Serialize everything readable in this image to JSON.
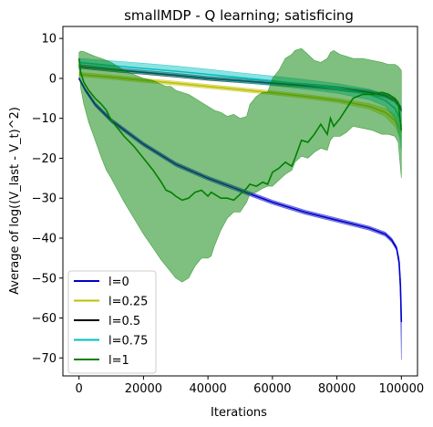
{
  "chart_data": {
    "type": "line",
    "title": "smallMDP - Q learning; satisficing",
    "xlabel": "Iterations",
    "ylabel": "Average of log((V_last - V_t)^2)",
    "xlim": [
      -5000,
      105000
    ],
    "ylim": [
      -74.5,
      13
    ],
    "xticks": [
      0,
      20000,
      40000,
      60000,
      80000,
      100000
    ],
    "xtick_labels": [
      "0",
      "20000",
      "40000",
      "60000",
      "80000",
      "100000"
    ],
    "yticks": [
      10,
      0,
      -10,
      -20,
      -30,
      -40,
      -50,
      -60,
      -70
    ],
    "ytick_labels": [
      "10",
      "0",
      "−10",
      "−20",
      "−30",
      "−40",
      "−50",
      "−60",
      "−70"
    ],
    "legend_position": "lower left",
    "grid": false,
    "series": [
      {
        "name": "l=0",
        "color": "#0000cc",
        "band_opacity": 0.45,
        "x": [
          0,
          2000,
          5000,
          10000,
          20000,
          30000,
          40000,
          50000,
          60000,
          70000,
          80000,
          90000,
          95000,
          97000,
          98500,
          99300,
          99700,
          100000
        ],
        "y": [
          0,
          -3,
          -6.5,
          -10.5,
          -16.5,
          -21.5,
          -25,
          -28,
          -31,
          -33.5,
          -35.5,
          -37.5,
          -39,
          -40.5,
          -42.5,
          -46,
          -52,
          -61
        ],
        "lower": [
          -0.3,
          -3.4,
          -7,
          -11,
          -17,
          -22,
          -25.5,
          -28.5,
          -31.5,
          -34,
          -36,
          -38,
          -39.5,
          -41,
          -43,
          -47,
          -55,
          -70.5
        ],
        "upper": [
          0.3,
          -2.6,
          -6,
          -10,
          -16,
          -21,
          -24.5,
          -27.5,
          -30.5,
          -33,
          -35,
          -37,
          -38.5,
          -40,
          -42,
          -45,
          -50,
          -58
        ]
      },
      {
        "name": "l=0.25",
        "color": "#bfbf00",
        "band_opacity": 0.45,
        "x": [
          0,
          10000,
          20000,
          30000,
          40000,
          50000,
          60000,
          70000,
          80000,
          90000,
          95000,
          98000,
          99500,
          100000
        ],
        "y": [
          1,
          0.3,
          -0.5,
          -1.2,
          -2,
          -2.8,
          -3.6,
          -4.5,
          -5.5,
          -7,
          -8.5,
          -10.5,
          -12.5,
          -13.5
        ],
        "lower": [
          0.5,
          -0.2,
          -1,
          -1.7,
          -2.5,
          -3.3,
          -4.1,
          -5,
          -6,
          -7.7,
          -9.5,
          -12,
          -14.5,
          -15.5
        ],
        "upper": [
          1.5,
          0.8,
          0,
          -0.7,
          -1.5,
          -2.3,
          -3.1,
          -4,
          -5,
          -6.3,
          -7.5,
          -9,
          -10.5,
          -11.5
        ]
      },
      {
        "name": "l=0.5",
        "color": "#000000",
        "band_opacity": 0.45,
        "x": [
          0,
          10000,
          20000,
          30000,
          40000,
          50000,
          60000,
          70000,
          80000,
          90000,
          95000,
          98000,
          99500,
          100000
        ],
        "y": [
          3,
          2.2,
          1.5,
          0.8,
          0,
          -0.6,
          -1.2,
          -1.8,
          -2.5,
          -3.5,
          -4.3,
          -5.5,
          -7,
          -8
        ],
        "lower": [
          2.5,
          1.7,
          1,
          0.3,
          -0.5,
          -1.1,
          -1.7,
          -2.3,
          -3,
          -4,
          -4.8,
          -6,
          -7.5,
          -8.5
        ],
        "upper": [
          3.5,
          2.7,
          2,
          1.3,
          0.5,
          -0.1,
          -0.7,
          -1.3,
          -2,
          -3,
          -3.8,
          -5,
          -6.5,
          -7.5
        ]
      },
      {
        "name": "l=0.75",
        "color": "#00bfbf",
        "band_opacity": 0.45,
        "x": [
          0,
          10000,
          20000,
          30000,
          40000,
          50000,
          60000,
          70000,
          80000,
          90000,
          95000,
          98000,
          99500,
          100000
        ],
        "y": [
          4,
          3.2,
          2.5,
          1.8,
          1,
          0.2,
          -0.6,
          -1.5,
          -2.5,
          -4,
          -5.5,
          -7.5,
          -10,
          -12
        ],
        "lower": [
          3,
          2,
          1.2,
          0.5,
          -0.3,
          -1,
          -1.8,
          -2.7,
          -3.7,
          -5.3,
          -7,
          -10,
          -15,
          -18
        ],
        "upper": [
          5,
          4.4,
          3.8,
          3.1,
          2.3,
          1.4,
          0.6,
          -0.3,
          -1.3,
          -2.7,
          -4,
          -5.5,
          -6.5,
          -7
        ]
      },
      {
        "name": "l=1",
        "color": "#008000",
        "band_opacity": 0.5,
        "x": [
          0,
          500,
          1500,
          3000,
          5000,
          7000,
          8500,
          10000,
          12000,
          14000,
          17000,
          20000,
          23000,
          25500,
          27000,
          28500,
          30000,
          32000,
          34000,
          36000,
          38000,
          40000,
          41000,
          42000,
          44000,
          46000,
          48000,
          50000,
          52000,
          53000,
          55000,
          57000,
          58500,
          60000,
          62000,
          64000,
          66000,
          67000,
          69000,
          71000,
          73000,
          75000,
          77000,
          78000,
          79000,
          81000,
          83000,
          85000,
          88000,
          91000,
          94000,
          96000,
          98000,
          99000,
          100000
        ],
        "y": [
          5,
          1.5,
          -1,
          -3,
          -5,
          -6.5,
          -8,
          -10.5,
          -12.5,
          -14.5,
          -17,
          -20,
          -23,
          -26,
          -28,
          -28.5,
          -29.5,
          -30.5,
          -30,
          -28.5,
          -28,
          -29.5,
          -28.5,
          -29,
          -30,
          -30,
          -30.5,
          -29,
          -27.5,
          -26.5,
          -27,
          -26,
          -26.5,
          -23.5,
          -22.5,
          -21,
          -22,
          -20,
          -15.5,
          -16,
          -14,
          -11.5,
          -14,
          -10,
          -12,
          -10,
          -7.5,
          -5,
          -4,
          -4,
          -3.5,
          -4,
          -5,
          -6,
          -13
        ],
        "lower": [
          3,
          -2.5,
          -6.5,
          -11,
          -15.5,
          -20,
          -23,
          -25,
          -28,
          -31,
          -35,
          -39,
          -42.5,
          -45.5,
          -47,
          -48.5,
          -50,
          -51,
          -50,
          -47,
          -45,
          -45,
          -44.5,
          -42,
          -38,
          -35,
          -33.5,
          -33.5,
          -31,
          -29,
          -28.5,
          -27.5,
          -27,
          -27,
          -25.5,
          -24,
          -23,
          -21,
          -19.5,
          -20,
          -18.5,
          -17.5,
          -18,
          -15.5,
          -14.5,
          -14.5,
          -13.5,
          -12,
          -12.5,
          -13,
          -14,
          -14,
          -14.5,
          -16,
          -25
        ],
        "upper": [
          6.5,
          6.8,
          6.7,
          6.2,
          5.5,
          5,
          4.5,
          4,
          3,
          2,
          1,
          0,
          -0.5,
          -1.5,
          -2,
          -2,
          -3,
          -3.5,
          -4,
          -5,
          -6,
          -7,
          -7.5,
          -8,
          -8.5,
          -9.5,
          -9,
          -10,
          -9.5,
          -6.5,
          -4.5,
          -3.5,
          -3.5,
          0,
          2,
          5,
          6,
          7,
          7.5,
          6,
          4.5,
          4,
          5,
          6.5,
          7,
          6,
          5.5,
          5,
          5,
          4.5,
          4,
          3.5,
          3.5,
          3,
          2
        ]
      }
    ]
  }
}
